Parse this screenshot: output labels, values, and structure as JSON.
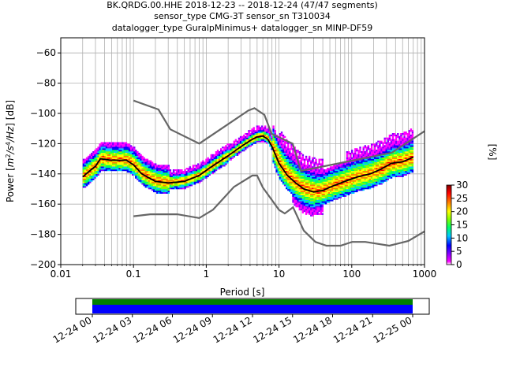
{
  "chart_data": {
    "type": "heatmap",
    "title_lines": [
      "BK.QRDG.00.HHE   2018-12-23 -- 2018-12-24  (47/47 segments)",
      "sensor_type CMG-3T sensor_sn T310034",
      "datalogger_type GuralpMinimus+ datalogger_sn MINP-DF59"
    ],
    "xlabel": "Period [s]",
    "ylabel_prefix": "Power [",
    "ylabel_mid": "m",
    "ylabel_s": "/s",
    "ylabel_hz": "/Hz",
    "ylabel_suffix": "] [dB]",
    "ylabel_exp2": "2",
    "ylabel_exp4": "4",
    "x_scale": "log",
    "xlim": [
      0.01,
      1000
    ],
    "ylim": [
      -200,
      -50
    ],
    "x_ticks": [
      {
        "value": 0.01,
        "label": "0.01"
      },
      {
        "value": 0.1,
        "label": "0.1"
      },
      {
        "value": 1,
        "label": "1"
      },
      {
        "value": 10,
        "label": "10"
      },
      {
        "value": 100,
        "label": "100"
      },
      {
        "value": 1000,
        "label": "1000"
      }
    ],
    "y_ticks": [
      {
        "value": -60,
        "label": "−60"
      },
      {
        "value": -80,
        "label": "−80"
      },
      {
        "value": -100,
        "label": "−100"
      },
      {
        "value": -120,
        "label": "−120"
      },
      {
        "value": -140,
        "label": "−140"
      },
      {
        "value": -160,
        "label": "−160"
      },
      {
        "value": -180,
        "label": "−180"
      },
      {
        "value": -200,
        "label": "−200"
      }
    ],
    "grid": true,
    "colorbar": {
      "label": "[%]",
      "range": [
        0,
        30
      ],
      "ticks": [
        {
          "value": 0,
          "label": "0"
        },
        {
          "value": 5,
          "label": "5"
        },
        {
          "value": 10,
          "label": "10"
        },
        {
          "value": 15,
          "label": "15"
        },
        {
          "value": 20,
          "label": "20"
        },
        {
          "value": 25,
          "label": "25"
        },
        {
          "value": 30,
          "label": "30"
        }
      ],
      "colors": [
        "#ffffff",
        "#ff00ff",
        "#8000ff",
        "#0000ff",
        "#00c8ff",
        "#00ff64",
        "#80ff00",
        "#ffff00",
        "#ff8000",
        "#ff0000",
        "#800000"
      ]
    },
    "high_noise_model": {
      "x": [
        0.1,
        0.22,
        0.32,
        0.8,
        3.8,
        4.6,
        6.3,
        7.9,
        15.4,
        20,
        354.8,
        10000
      ],
      "y": [
        -91.5,
        -97.4,
        -110.5,
        -120,
        -98,
        -96.5,
        -101,
        -113.5,
        -120,
        -138,
        -126,
        -80.1
      ]
    },
    "low_noise_model": {
      "x": [
        0.1,
        0.17,
        0.4,
        0.8,
        1.24,
        2.4,
        4.3,
        5,
        6,
        10,
        12,
        15.6,
        21.9,
        31.6,
        45,
        70,
        101,
        154,
        328,
        600,
        1000
      ],
      "y": [
        -168,
        -166.7,
        -166.7,
        -169.2,
        -163.7,
        -148.6,
        -141.1,
        -141.1,
        -149,
        -163.8,
        -166.2,
        -162.1,
        -177.5,
        -185,
        -187.5,
        -187.5,
        -185,
        -185,
        -187.5,
        -184.4,
        -178
      ]
    },
    "mean_psd": {
      "x": [
        0.02,
        0.025,
        0.03,
        0.035,
        0.05,
        0.08,
        0.1,
        0.13,
        0.2,
        0.3,
        0.5,
        0.8,
        1.2,
        2,
        3,
        4,
        5,
        6,
        7,
        8,
        10,
        13,
        17,
        22,
        30,
        40,
        55,
        80,
        120,
        180,
        250,
        350,
        500,
        700
      ],
      "y": [
        -142,
        -138,
        -135,
        -130,
        -131,
        -131,
        -134,
        -140,
        -145,
        -146,
        -145,
        -141,
        -135,
        -128,
        -122,
        -118,
        -115.5,
        -115,
        -117,
        -122,
        -133,
        -141,
        -146,
        -150,
        -152,
        -151,
        -148,
        -145,
        -142,
        -140,
        -137,
        -133,
        -132,
        -129
      ]
    },
    "segments_bar": {
      "labels": [
        "12-24 00",
        "12-24 03",
        "12-24 06",
        "12-24 09",
        "12-24 12",
        "12-24 15",
        "12-24 18",
        "12-24 21",
        "12-25 00"
      ],
      "tracks": [
        "green",
        "blue"
      ]
    }
  }
}
